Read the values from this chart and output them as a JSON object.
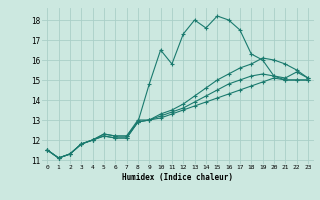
{
  "xlabel": "Humidex (Indice chaleur)",
  "ylabel": "",
  "bg_color": "#cce8e0",
  "line_color": "#1a7a6e",
  "grid_color": "#aacfc8",
  "xlim": [
    -0.5,
    23.5
  ],
  "ylim": [
    10.8,
    18.6
  ],
  "yticks": [
    11,
    12,
    13,
    14,
    15,
    16,
    17,
    18
  ],
  "xticks": [
    0,
    1,
    2,
    3,
    4,
    5,
    6,
    7,
    8,
    9,
    10,
    11,
    12,
    13,
    14,
    15,
    16,
    17,
    18,
    19,
    20,
    21,
    22,
    23
  ],
  "series": [
    [
      0,
      11.5,
      1,
      11.1,
      2,
      11.3,
      3,
      11.8,
      4,
      12.0,
      5,
      12.3,
      6,
      12.2,
      7,
      12.2,
      8,
      12.9,
      9,
      14.8,
      10,
      16.5,
      11,
      15.8,
      12,
      17.3,
      13,
      18.0,
      14,
      17.6,
      15,
      18.2,
      16,
      18.0,
      17,
      17.5,
      18,
      16.3,
      19,
      16.0,
      20,
      15.2,
      21,
      15.1,
      22,
      15.4,
      23,
      15.1
    ],
    [
      0,
      11.5,
      1,
      11.1,
      2,
      11.3,
      3,
      11.8,
      4,
      12.0,
      5,
      12.3,
      6,
      12.2,
      7,
      12.2,
      8,
      13.0,
      9,
      13.0,
      10,
      13.3,
      11,
      13.5,
      12,
      13.8,
      13,
      14.2,
      14,
      14.6,
      15,
      15.0,
      16,
      15.3,
      17,
      15.6,
      18,
      15.8,
      19,
      16.1,
      20,
      16.0,
      21,
      15.8,
      22,
      15.5,
      23,
      15.1
    ],
    [
      0,
      11.5,
      1,
      11.1,
      2,
      11.3,
      3,
      11.8,
      4,
      12.0,
      5,
      12.2,
      6,
      12.1,
      7,
      12.1,
      8,
      12.9,
      9,
      13.0,
      10,
      13.2,
      11,
      13.4,
      12,
      13.6,
      13,
      13.9,
      14,
      14.2,
      15,
      14.5,
      16,
      14.8,
      17,
      15.0,
      18,
      15.2,
      19,
      15.3,
      20,
      15.2,
      21,
      15.0,
      22,
      15.0,
      23,
      15.0
    ],
    [
      0,
      11.5,
      1,
      11.1,
      2,
      11.3,
      3,
      11.8,
      4,
      12.0,
      5,
      12.2,
      6,
      12.1,
      7,
      12.1,
      8,
      12.9,
      9,
      13.0,
      10,
      13.1,
      11,
      13.3,
      12,
      13.5,
      13,
      13.7,
      14,
      13.9,
      15,
      14.1,
      16,
      14.3,
      17,
      14.5,
      18,
      14.7,
      19,
      14.9,
      20,
      15.1,
      21,
      15.0,
      22,
      15.0,
      23,
      15.0
    ]
  ]
}
